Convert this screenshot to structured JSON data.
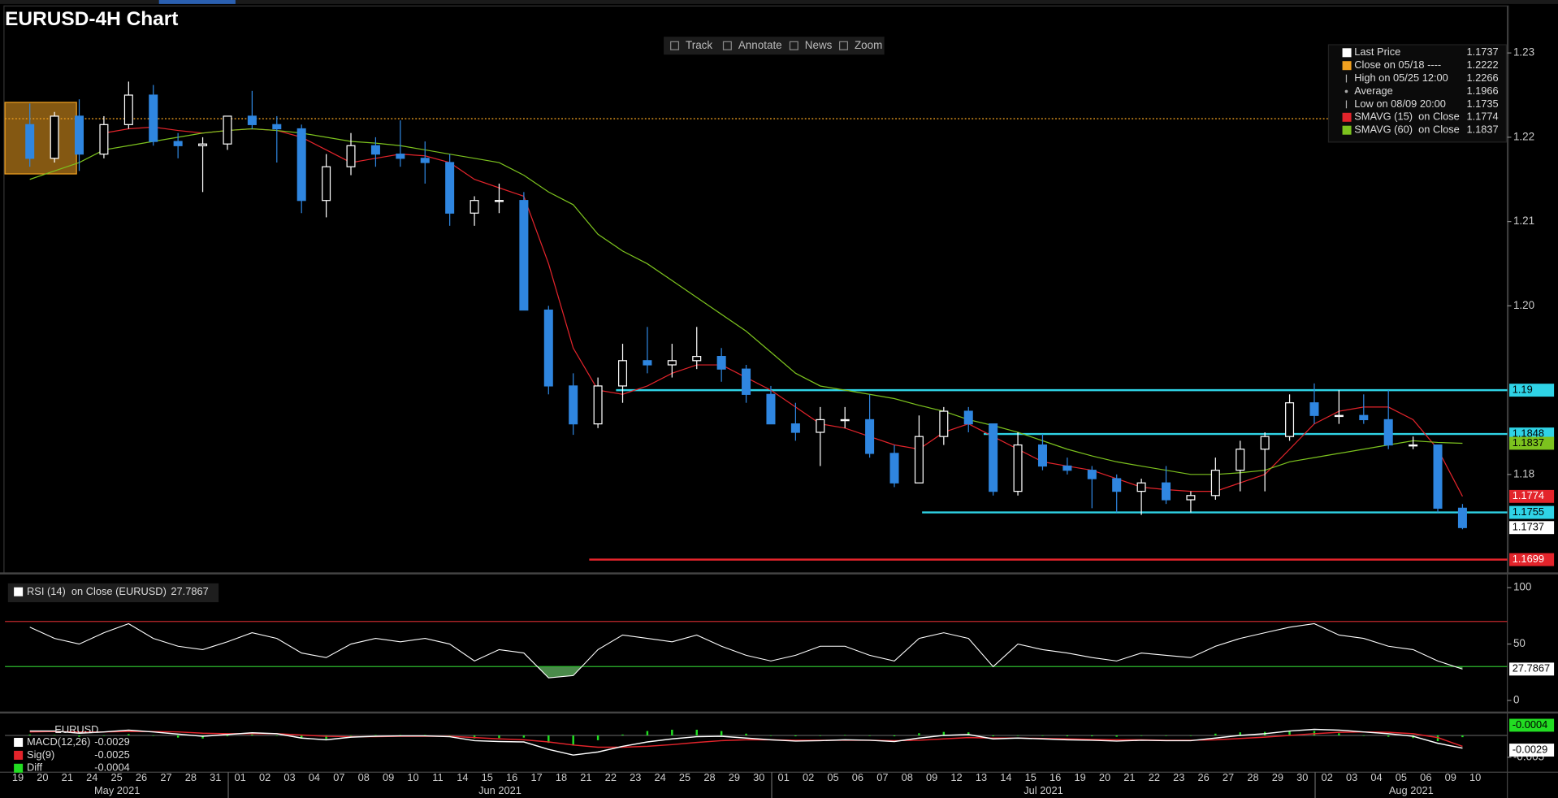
{
  "toolbar": [
    "Track",
    "Annotate",
    "News",
    "Zoom"
  ],
  "chart_data": [
    {
      "type": "candlestick",
      "title": "EURUSD-4H Chart",
      "categories": [
        "19",
        "20",
        "21",
        "24",
        "25",
        "26",
        "27",
        "28",
        "31",
        "01",
        "02",
        "03",
        "04",
        "07",
        "08",
        "09",
        "10",
        "11",
        "14",
        "15",
        "16",
        "17",
        "18",
        "21",
        "22",
        "23",
        "24",
        "25",
        "28",
        "29",
        "30",
        "01",
        "02",
        "05",
        "06",
        "07",
        "08",
        "09",
        "12",
        "13",
        "14",
        "15",
        "16",
        "19",
        "20",
        "21",
        "22",
        "23",
        "26",
        "27",
        "28",
        "29",
        "30",
        "02",
        "03",
        "04",
        "05",
        "06",
        "09",
        "10"
      ],
      "months": [
        "May 2021",
        "Jun 2021",
        "Jul 2021",
        "Aug 2021"
      ],
      "up_color": "#ffffff",
      "down_color": "#2f86e0",
      "open": [
        1.2215,
        1.2175,
        1.2225,
        1.218,
        1.2215,
        1.225,
        1.2195,
        1.219,
        1.2192,
        1.2225,
        1.2215,
        1.221,
        1.2125,
        1.2165,
        1.219,
        1.218,
        1.2175,
        1.217,
        1.211,
        1.2125,
        1.2125,
        1.1995,
        1.1905,
        1.186,
        1.1905,
        1.1935,
        1.193,
        1.1935,
        1.194,
        1.1925,
        1.1895,
        1.186,
        1.185,
        1.1865,
        1.1865,
        1.1825,
        1.179,
        1.1845,
        1.1875,
        1.186,
        1.178,
        1.1835,
        1.181,
        1.1805,
        1.1795,
        1.178,
        1.179,
        1.177,
        1.1775,
        1.1805,
        1.183,
        1.1845,
        1.1885,
        1.187,
        1.187,
        1.1865,
        1.1835,
        1.1835,
        1.176,
        null
      ],
      "high": [
        1.224,
        1.223,
        1.2245,
        1.2225,
        1.2266,
        1.2262,
        1.2205,
        1.22,
        1.222,
        1.2255,
        1.2225,
        1.2215,
        1.218,
        1.2205,
        1.22,
        1.222,
        1.2195,
        1.218,
        1.213,
        1.2145,
        1.2135,
        1.2,
        1.192,
        1.1915,
        1.1955,
        1.1975,
        1.1955,
        1.1975,
        1.195,
        1.193,
        1.1905,
        1.1885,
        1.188,
        1.188,
        1.1895,
        1.1835,
        1.187,
        1.188,
        1.188,
        1.186,
        1.185,
        1.1848,
        1.182,
        1.181,
        1.18,
        1.1795,
        1.181,
        1.178,
        1.182,
        1.184,
        1.185,
        1.1895,
        1.1908,
        1.19,
        1.1895,
        1.19,
        1.1845,
        1.1835,
        1.1765,
        null
      ],
      "low": [
        1.2165,
        1.217,
        1.216,
        1.2175,
        1.221,
        1.219,
        1.2175,
        1.2135,
        1.2185,
        1.221,
        1.217,
        1.211,
        1.2105,
        1.2155,
        1.2165,
        1.2165,
        1.2145,
        1.2095,
        1.2095,
        1.211,
        1.1995,
        1.1895,
        1.1847,
        1.1855,
        1.1885,
        1.192,
        1.1915,
        1.1925,
        1.191,
        1.1885,
        1.186,
        1.184,
        1.181,
        1.1855,
        1.182,
        1.1785,
        1.179,
        1.1835,
        1.185,
        1.1775,
        1.1775,
        1.1805,
        1.18,
        1.176,
        1.1755,
        1.1752,
        1.1765,
        1.1755,
        1.177,
        1.178,
        1.178,
        1.184,
        1.186,
        1.186,
        1.186,
        1.183,
        1.183,
        1.1755,
        1.1735,
        null
      ],
      "close": [
        1.2175,
        1.2225,
        1.218,
        1.2215,
        1.225,
        1.2195,
        1.219,
        1.2192,
        1.2225,
        1.2215,
        1.221,
        1.2125,
        1.2165,
        1.219,
        1.218,
        1.2175,
        1.217,
        1.211,
        1.2125,
        1.2125,
        1.1995,
        1.1905,
        1.186,
        1.1905,
        1.1935,
        1.193,
        1.1935,
        1.194,
        1.1925,
        1.1895,
        1.186,
        1.185,
        1.1865,
        1.1865,
        1.1825,
        1.179,
        1.1845,
        1.1875,
        1.186,
        1.178,
        1.1835,
        1.181,
        1.1805,
        1.1795,
        1.178,
        1.179,
        1.177,
        1.1775,
        1.1805,
        1.183,
        1.1845,
        1.1885,
        1.187,
        1.187,
        1.1865,
        1.1835,
        1.1835,
        1.176,
        1.1737,
        null
      ],
      "series": [
        {
          "name": "SMAVG (15)  on Close",
          "color": "#e3242b",
          "values": [
            null,
            null,
            null,
            1.2205,
            1.221,
            1.2212,
            1.2208,
            1.2205,
            1.2208,
            1.221,
            1.2208,
            1.22,
            1.2185,
            1.217,
            1.2175,
            1.218,
            1.2178,
            1.217,
            1.215,
            1.214,
            1.213,
            1.205,
            1.195,
            1.19,
            1.1895,
            1.1905,
            1.192,
            1.193,
            1.193,
            1.1915,
            1.19,
            1.188,
            1.186,
            1.1855,
            1.1845,
            1.1835,
            1.183,
            1.185,
            1.186,
            1.1845,
            1.183,
            1.1815,
            1.181,
            1.1805,
            1.1795,
            1.1785,
            1.1782,
            1.178,
            1.178,
            1.179,
            1.18,
            1.183,
            1.186,
            1.1875,
            1.188,
            1.188,
            1.1865,
            1.183,
            1.1774,
            null
          ]
        },
        {
          "name": "SMAVG (60)  on Close",
          "color": "#7cc21e",
          "values": [
            1.215,
            1.216,
            1.217,
            1.2185,
            1.219,
            1.2195,
            1.22,
            1.2205,
            1.2208,
            1.221,
            1.2208,
            1.2205,
            1.22,
            1.2195,
            1.2193,
            1.219,
            1.2185,
            1.218,
            1.2175,
            1.217,
            1.2155,
            1.2135,
            1.212,
            1.2085,
            1.2065,
            1.205,
            1.203,
            1.201,
            1.199,
            1.197,
            1.1945,
            1.192,
            1.1905,
            1.19,
            1.1895,
            1.189,
            1.1882,
            1.1875,
            1.1865,
            1.1858,
            1.185,
            1.184,
            1.183,
            1.1822,
            1.1815,
            1.181,
            1.1805,
            1.18,
            1.18,
            1.1802,
            1.1805,
            1.1815,
            1.182,
            1.1825,
            1.183,
            1.1835,
            1.184,
            1.1838,
            1.1837,
            null
          ]
        }
      ],
      "reference_close": {
        "name": "Close on 05/18 ----",
        "value": 1.2222,
        "color": "#f0a020"
      },
      "average": {
        "name": "Average",
        "value": 1.1966
      },
      "last_label": "Last Price",
      "high_label": "High on 05/25 12:00",
      "low_label": "Low on 08/09 20:00",
      "levels": [
        {
          "value": 1.19,
          "color": "#2fd3e6"
        },
        {
          "value": 1.1848,
          "color": "#2fd3e6"
        },
        {
          "value": 1.1755,
          "color": "#2fd3e6"
        },
        {
          "value": 1.1699,
          "color": "#e3242b"
        }
      ],
      "ylim": [
        1.1685,
        1.2351
      ],
      "yticks": [
        1.23,
        1.22,
        1.21,
        {
          "value": 1.2,
          "label": "1.20"
        },
        1.18
      ]
    },
    {
      "type": "line",
      "name": "RSI (14)  on Close (EURUSD)",
      "color": "#ffffff",
      "values": [
        65,
        55,
        50,
        60,
        68,
        55,
        48,
        45,
        52,
        60,
        55,
        42,
        38,
        50,
        55,
        52,
        55,
        50,
        35,
        45,
        42,
        20,
        22,
        45,
        58,
        55,
        52,
        58,
        48,
        40,
        35,
        40,
        48,
        48,
        40,
        35,
        55,
        60,
        55,
        30,
        50,
        45,
        42,
        38,
        35,
        42,
        40,
        38,
        48,
        55,
        60,
        65,
        68,
        58,
        55,
        48,
        45,
        35,
        27.7867,
        null
      ],
      "upper": 70,
      "upper_color": "#c0282d",
      "lower": 30,
      "lower_color": "#2db82d",
      "fill_color": "#4a8a4a",
      "ylim": [
        -9,
        110
      ],
      "yticks": [
        0,
        50,
        100
      ]
    },
    {
      "type": "macd",
      "title": "EURUSD",
      "series": [
        {
          "name": "MACD(12,26)",
          "color": "#ffffff",
          "values": [
            0.001,
            0.001,
            0.0005,
            0.0008,
            0.0012,
            0.0008,
            0.0003,
            -0.0002,
            0.0002,
            0.0006,
            0.0004,
            -0.0006,
            -0.001,
            -0.0004,
            -0.0002,
            -0.0001,
            -0.0001,
            -0.0003,
            -0.0012,
            -0.0014,
            -0.0015,
            -0.0032,
            -0.0045,
            -0.0038,
            -0.0025,
            -0.0015,
            -0.0008,
            -0.0003,
            -0.0002,
            -0.0006,
            -0.001,
            -0.0013,
            -0.0012,
            -0.001,
            -0.0011,
            -0.0014,
            -0.0006,
            0,
            0.0002,
            -0.0008,
            -0.0006,
            -0.0008,
            -0.001,
            -0.0011,
            -0.0013,
            -0.0011,
            -0.0012,
            -0.0012,
            -0.0006,
            0,
            0.0004,
            0.001,
            0.0014,
            0.0012,
            0.0008,
            0.0004,
            -0.0002,
            -0.0018,
            -0.0029,
            null
          ]
        },
        {
          "name": "Sig(9)",
          "color": "#e3242b",
          "values": [
            0.0008,
            0.0009,
            0.0008,
            0.0008,
            0.0009,
            0.0009,
            0.0008,
            0.0005,
            0.0004,
            0.0004,
            0.0004,
            0.0001,
            -0.0002,
            -0.0003,
            -0.0003,
            -0.0002,
            -0.0002,
            -0.0002,
            -0.0005,
            -0.0008,
            -0.001,
            -0.0015,
            -0.0022,
            -0.0027,
            -0.0027,
            -0.0025,
            -0.0021,
            -0.0016,
            -0.0012,
            -0.001,
            -0.001,
            -0.0011,
            -0.0011,
            -0.0011,
            -0.0011,
            -0.0012,
            -0.0011,
            -0.0008,
            -0.0005,
            -0.0006,
            -0.0006,
            -0.0007,
            -0.0008,
            -0.0009,
            -0.001,
            -0.001,
            -0.0011,
            -0.0011,
            -0.001,
            -0.0007,
            -0.0004,
            0,
            0.0004,
            0.0007,
            0.0008,
            0.0007,
            0.0004,
            -0.0005,
            -0.0025,
            null
          ]
        },
        {
          "name": "Diff",
          "color": "#22dd22",
          "values": [
            0.0002,
            0.0001,
            -0.0003,
            0,
            0.0003,
            -0.0001,
            -0.0005,
            -0.0007,
            -0.0002,
            0.0002,
            0,
            -0.0007,
            -0.0008,
            -0.0001,
            0.0001,
            0.0001,
            0.0001,
            -0.0001,
            -0.0007,
            -0.0006,
            -0.0005,
            -0.0017,
            -0.0023,
            -0.0011,
            0.0002,
            0.001,
            0.0013,
            0.0013,
            0.001,
            0.0004,
            0,
            -0.0002,
            -0.0001,
            0.0001,
            0,
            -0.0002,
            0.0005,
            0.0008,
            0.0007,
            -0.0002,
            0,
            -0.0001,
            -0.0002,
            -0.0002,
            -0.0003,
            -0.0001,
            -0.0001,
            -0.0001,
            0.0004,
            0.0007,
            0.0008,
            0.001,
            0.001,
            0.0005,
            0,
            -0.0003,
            -0.0006,
            -0.0013,
            -0.0004,
            null
          ]
        }
      ],
      "ylim": [
        -0.00795,
        0.00455
      ],
      "yticks": [
        -0.005
      ]
    }
  ]
}
